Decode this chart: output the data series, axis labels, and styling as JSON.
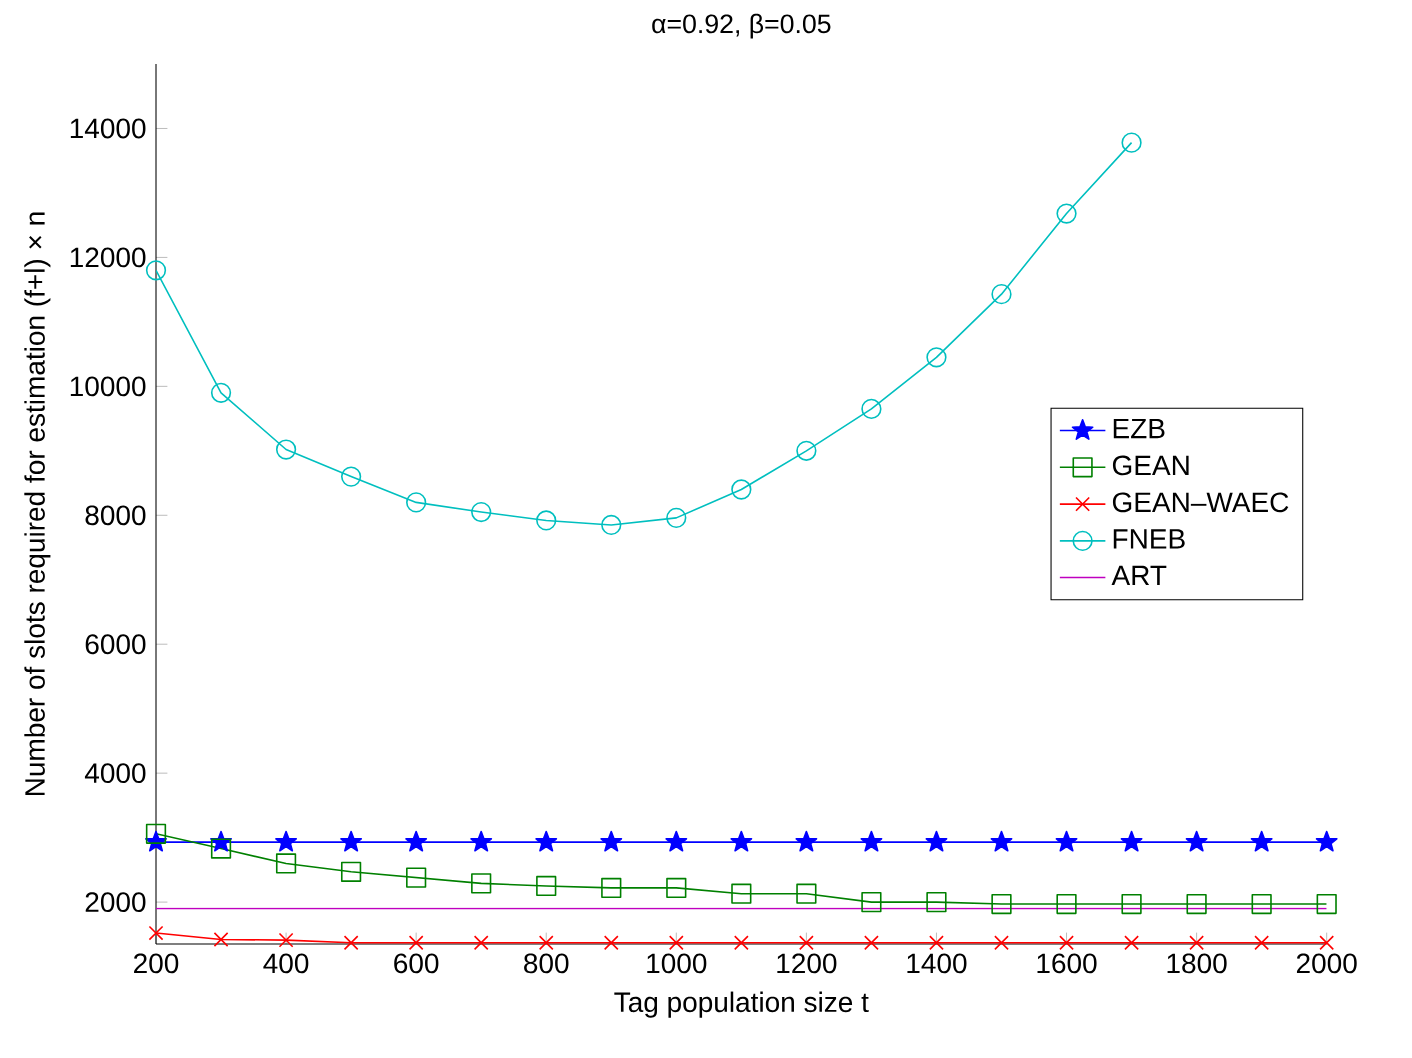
{
  "chart_data": {
    "type": "line",
    "title": "α=0.92, β=0.05",
    "xlabel": "Tag population size t",
    "ylabel": "Number of slots required for estimation (f+l) × n",
    "x": [
      200,
      300,
      400,
      500,
      600,
      700,
      800,
      900,
      1000,
      1100,
      1200,
      1300,
      1400,
      1500,
      1600,
      1700,
      1800,
      1900,
      2000
    ],
    "xlim": [
      200,
      2000
    ],
    "xticks": [
      200,
      400,
      600,
      800,
      1000,
      1200,
      1400,
      1600,
      1800,
      2000
    ],
    "ylim": [
      1350,
      15000
    ],
    "yticks": [
      2000,
      4000,
      6000,
      8000,
      10000,
      12000,
      14000
    ],
    "legend": "right",
    "grid": false,
    "series": [
      {
        "name": "EZB",
        "color": "#0000ff",
        "marker": "star",
        "values": [
          2930,
          2930,
          2930,
          2930,
          2930,
          2930,
          2930,
          2930,
          2930,
          2930,
          2930,
          2930,
          2930,
          2930,
          2930,
          2930,
          2930,
          2930,
          2930
        ]
      },
      {
        "name": "GEAN",
        "color": "#008000",
        "marker": "square",
        "values": [
          3060,
          2830,
          2600,
          2470,
          2380,
          2290,
          2250,
          2220,
          2220,
          2130,
          2130,
          2000,
          2000,
          1970,
          1970,
          1970,
          1970,
          1970,
          1970
        ]
      },
      {
        "name": "GEAN‒WAEC",
        "color": "#ff0000",
        "marker": "cross",
        "values": [
          1520,
          1420,
          1410,
          1370,
          1370,
          1370,
          1370,
          1370,
          1370,
          1370,
          1370,
          1370,
          1370,
          1370,
          1370,
          1370,
          1370,
          1370,
          1370
        ]
      },
      {
        "name": "FNEB",
        "color": "#00bfbf",
        "marker": "circle",
        "values": [
          11800,
          9900,
          9020,
          8600,
          8200,
          8050,
          7920,
          7850,
          7960,
          8400,
          9000,
          9650,
          10450,
          11430,
          12680,
          13780,
          null,
          null,
          null
        ]
      },
      {
        "name": "ART",
        "color": "#bf00bf",
        "marker": "none",
        "values": [
          1900,
          1900,
          1900,
          1900,
          1900,
          1900,
          1900,
          1900,
          1900,
          1900,
          1900,
          1900,
          1900,
          1900,
          1900,
          1900,
          1900,
          1900,
          1900
        ]
      }
    ]
  }
}
